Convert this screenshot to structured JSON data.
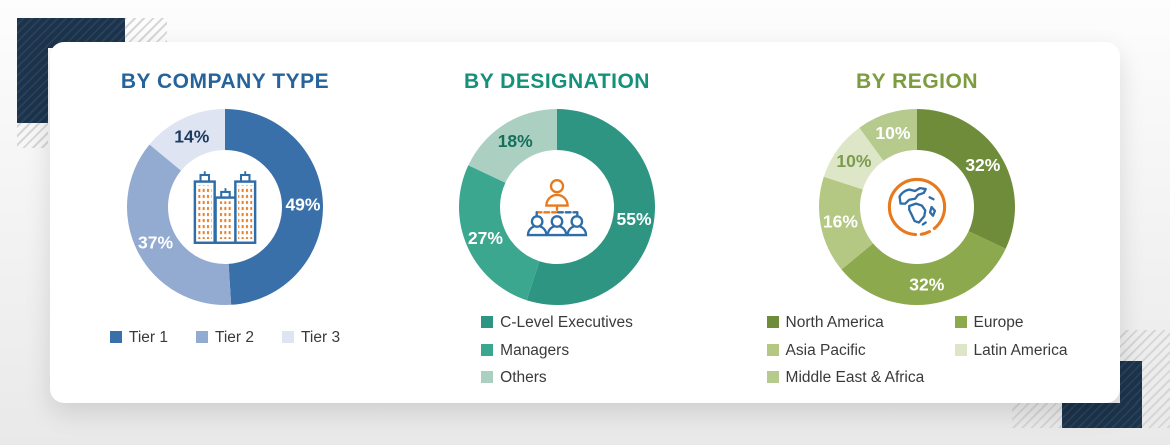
{
  "decor": {
    "corner_navy": "#1d3349",
    "icon_blue": "#2E6DA8",
    "icon_orange": "#E87A1E",
    "legend_text_color": "#3a3a3a"
  },
  "chart_data": [
    {
      "type": "pie",
      "variant": "donut",
      "title": "BY COMPANY TYPE",
      "title_color": "#27639B",
      "center_icon": "buildings-icon",
      "legend_layout": "horizontal",
      "labels": [
        "Tier 1",
        "Tier 2",
        "Tier 3"
      ],
      "values": [
        49,
        37,
        14
      ],
      "colors": [
        "#3A70A9",
        "#93AAD1",
        "#DEE4F1"
      ],
      "label_colors": [
        "#FFFFFF",
        "#FFFFFF",
        "#1E3A5F"
      ],
      "start_angle_deg": 0,
      "direction": "clockwise"
    },
    {
      "type": "pie",
      "variant": "donut",
      "title": "BY DESIGNATION",
      "title_color": "#15917B",
      "center_icon": "org-chart-icon",
      "legend_layout": "vertical",
      "labels": [
        "C-Level Executives",
        "Managers",
        "Others"
      ],
      "values": [
        55,
        27,
        18
      ],
      "colors": [
        "#2E9583",
        "#3BA78F",
        "#ABD0C1"
      ],
      "label_colors": [
        "#FFFFFF",
        "#FFFFFF",
        "#156F5C"
      ],
      "start_angle_deg": 0,
      "direction": "clockwise"
    },
    {
      "type": "pie",
      "variant": "donut",
      "title": "BY REGION",
      "title_color": "#7C9C3F",
      "center_icon": "globe-icon",
      "legend_layout": "two-column",
      "labels": [
        "North America",
        "Europe",
        "Asia Pacific",
        "Latin America",
        "Middle East & Africa"
      ],
      "values": [
        32,
        32,
        16,
        10,
        10
      ],
      "colors": [
        "#6F8C3A",
        "#8CA94E",
        "#B4C783",
        "#DDE7C7",
        "#B6CA8D"
      ],
      "label_colors": [
        "#FFFFFF",
        "#FFFFFF",
        "#FFFFFF",
        "#7D9B4E",
        "#FFFFFF"
      ],
      "start_angle_deg": 0,
      "direction": "clockwise"
    }
  ]
}
